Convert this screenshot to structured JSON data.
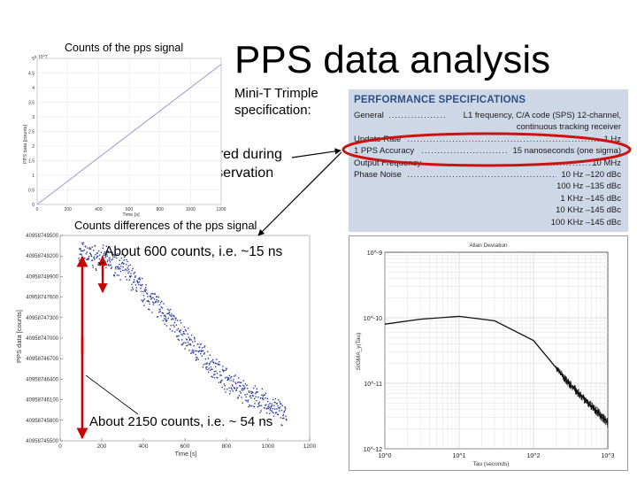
{
  "title": "PPS data analysis",
  "counts_caption": "Counts of the pps signal",
  "mini_t_caption": [
    "Mini-T Trimple",
    "specification:"
  ],
  "acquired_caption": [
    "PPS acquired during",
    "Feige observation"
  ],
  "diff_caption": "Counts differences of the pps signal",
  "annotation_600": "About 600 counts, i.e. ~15 ns",
  "annotation_2150": "About 2150 counts, i.e. ~ 54 ns",
  "spec_table": {
    "title": "PERFORMANCE SPECIFICATIONS",
    "rows": [
      {
        "label": "General",
        "value": "L1 frequency, C/A code (SPS) 12-channel,"
      },
      {
        "label": "",
        "value": "continuous tracking receiver"
      },
      {
        "label": "Update Rate",
        "value": "1 Hz"
      },
      {
        "label": "1 PPS Accuracy",
        "value": "15 nanoseconds (one sigma)"
      },
      {
        "label": "Output Frequency",
        "value": "10 MHz"
      },
      {
        "label": "Phase Noise",
        "value": "10 Hz  –120 dBc"
      },
      {
        "label": "",
        "value": "100 Hz  –135 dBc"
      },
      {
        "label": "",
        "value": "1 KHz  –145 dBc"
      },
      {
        "label": "",
        "value": "10 KHz  –145 dBc"
      },
      {
        "label": "",
        "value": "100 KHz  –145 dBc"
      }
    ]
  },
  "chart_data": [
    {
      "type": "line",
      "xlabel": "Time [s]",
      "ylabel": "PPS data [counts]",
      "y_multiplier": "x 10^7",
      "x_ticks": [
        "0",
        "200",
        "400",
        "600",
        "800",
        "1000",
        "1200"
      ],
      "y_ticks": [
        "5",
        "4.5",
        "4",
        "3.5",
        "3",
        "2.5",
        "2",
        "1.5",
        "1",
        "0.5",
        "0"
      ],
      "xlim": [
        0,
        1200
      ],
      "ylim": [
        0,
        5
      ],
      "series": [
        {
          "x": [
            0,
            1200
          ],
          "y": [
            0,
            4.8
          ]
        }
      ]
    },
    {
      "type": "scatter",
      "xlabel": "Time [s]",
      "ylabel": "PPS data [counts]",
      "x_ticks": [
        "0",
        "200",
        "400",
        "600",
        "800",
        "1000",
        "1200"
      ],
      "y_ticks": [
        "40958749500",
        "40958749200",
        "40958748900",
        "40958747600",
        "40958747300",
        "40958747000",
        "40958746700",
        "40958746400",
        "40958746100",
        "40958745800",
        "40958745500"
      ],
      "xlim": [
        0,
        1200
      ],
      "trend": {
        "x": [
          90,
          200,
          300,
          400,
          500,
          600,
          700,
          800,
          900,
          1000,
          1090
        ],
        "y": [
          40958749150,
          40958749050,
          40958748900,
          40958748400,
          40958748000,
          40958747500,
          40958747100,
          40958746700,
          40958746400,
          40958746200,
          40958746000
        ]
      }
    },
    {
      "type": "line",
      "title": "Allan Deviation",
      "xlabel": "Tau (seconds)",
      "ylabel": "SIGMA_y(Tau)",
      "log_x": true,
      "log_y": true,
      "x_ticks": [
        "10^0",
        "10^1",
        "10^2",
        "10^3"
      ],
      "y_ticks": [
        "10^-9",
        "10^-10",
        "10^-11",
        "10^-12"
      ],
      "xlim": [
        1,
        1000
      ],
      "ylim": [
        1e-12,
        1e-09
      ],
      "series": [
        {
          "x": [
            1,
            3,
            10,
            30,
            100,
            300,
            1000
          ],
          "y": [
            8e-11,
            9.5e-11,
            1.05e-10,
            9e-11,
            4.5e-11,
            1e-11,
            2.5e-12
          ]
        }
      ]
    }
  ]
}
